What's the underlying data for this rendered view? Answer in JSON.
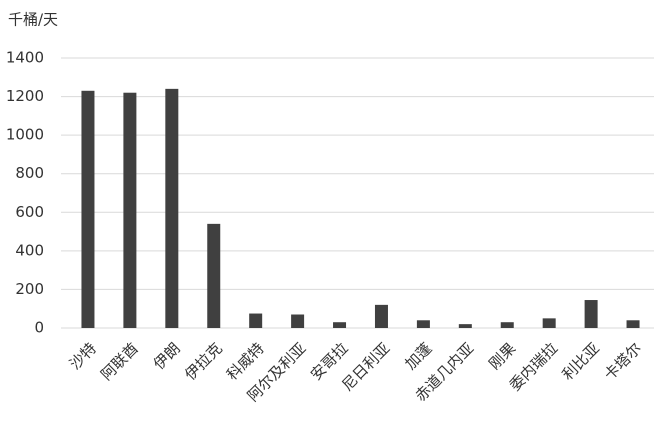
{
  "chart_data": {
    "type": "bar",
    "y_label": "千桶/天",
    "categories": [
      "沙特",
      "阿联酋",
      "伊朗",
      "伊拉克",
      "科威特",
      "阿尔及利亚",
      "安哥拉",
      "尼日利亚",
      "加蓬",
      "赤道几内亚",
      "刚果",
      "委内瑞拉",
      "利比亚",
      "卡塔尔"
    ],
    "values": [
      1230,
      1220,
      1240,
      540,
      75,
      70,
      30,
      120,
      40,
      20,
      30,
      50,
      145,
      40
    ],
    "color": "#404040",
    "ylim": [
      0,
      1400
    ],
    "yticks": [
      0,
      200,
      400,
      600,
      800,
      1000,
      1200,
      1400
    ],
    "grid": true
  }
}
